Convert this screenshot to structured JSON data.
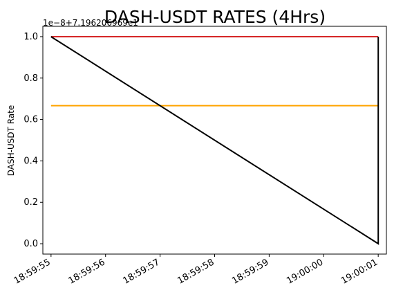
{
  "chart_data": {
    "type": "line",
    "title": "DASH-USDT RATES (4Hrs)",
    "xlabel": "",
    "ylabel": "DASH-USDT Rate",
    "offset_text": "1e−8+7.196206969e1",
    "x_ticks": [
      "18:59:55",
      "18:59:56",
      "18:59:57",
      "18:59:58",
      "18:59:59",
      "19:00:00",
      "19:00:01"
    ],
    "y_ticks": [
      "0.0",
      "0.2",
      "0.4",
      "0.6",
      "0.8",
      "1.0"
    ],
    "xlim": [
      "18:59:54.85",
      "19:00:01.15"
    ],
    "ylim": [
      -0.05,
      1.05
    ],
    "series": [
      {
        "color": "#d62728",
        "x": [
          "18:59:55",
          "19:00:01"
        ],
        "y": [
          1.0,
          1.0
        ]
      },
      {
        "color": "#ffa500",
        "x": [
          "18:59:55",
          "19:00:01"
        ],
        "y": [
          0.667,
          0.667
        ]
      },
      {
        "color": "#000000",
        "x": [
          "18:59:55",
          "19:00:01",
          "19:00:01"
        ],
        "y": [
          1.0,
          0.0,
          1.0
        ]
      }
    ]
  }
}
